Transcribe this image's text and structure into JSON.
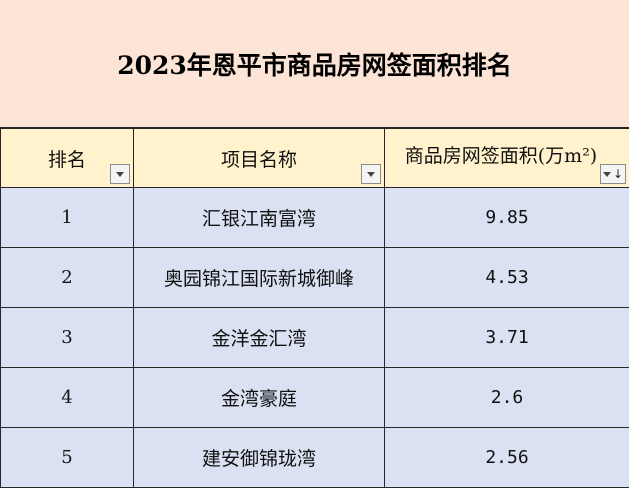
{
  "title": "2023年恩平市商品房网签面积排名",
  "headers": {
    "rank": "排名",
    "project": "项目名称",
    "area": "商品房网签面积(万m²)"
  },
  "rows": [
    {
      "rank": "1",
      "project": "汇银江南富湾",
      "area": "9.85"
    },
    {
      "rank": "2",
      "project": "奥园锦江国际新城御峰",
      "area": "4.53"
    },
    {
      "rank": "3",
      "project": "金洋金汇湾",
      "area": "3.71"
    },
    {
      "rank": "4",
      "project": "金湾豪庭",
      "area": "2.6"
    },
    {
      "rank": "5",
      "project": "建安御锦珑湾",
      "area": "2.56"
    }
  ],
  "icons": {
    "filter": "filter-dropdown-icon",
    "sort": "sort-descending-icon"
  },
  "colors": {
    "title_bg": "#fce4d6",
    "header_bg": "#fff2cc",
    "row_bg": "#d9e1f2"
  }
}
